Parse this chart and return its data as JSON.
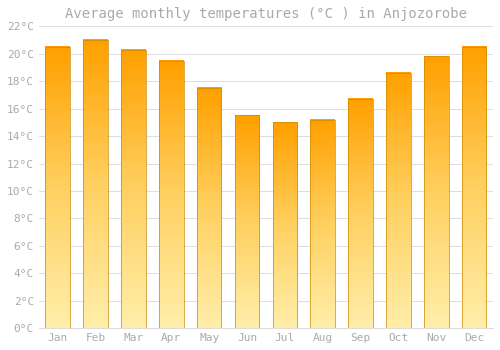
{
  "months": [
    "Jan",
    "Feb",
    "Mar",
    "Apr",
    "May",
    "Jun",
    "Jul",
    "Aug",
    "Sep",
    "Oct",
    "Nov",
    "Dec"
  ],
  "temperatures": [
    20.5,
    21.0,
    20.3,
    19.5,
    17.5,
    15.5,
    15.0,
    15.2,
    16.7,
    18.6,
    19.8,
    20.5
  ],
  "title": "Average monthly temperatures (°C ) in Anjozorobe",
  "bar_color_top": "#FFDD88",
  "bar_color_bottom": "#FFA000",
  "bar_edge_color": "#CC8800",
  "background_color": "#FFFFFF",
  "plot_bg_color": "#FFFFFF",
  "grid_color": "#DDDDDD",
  "ylim": [
    0,
    22
  ],
  "yticks": [
    0,
    2,
    4,
    6,
    8,
    10,
    12,
    14,
    16,
    18,
    20,
    22
  ],
  "title_fontsize": 10,
  "tick_fontsize": 8,
  "font_color": "#AAAAAA",
  "bar_width": 0.65
}
